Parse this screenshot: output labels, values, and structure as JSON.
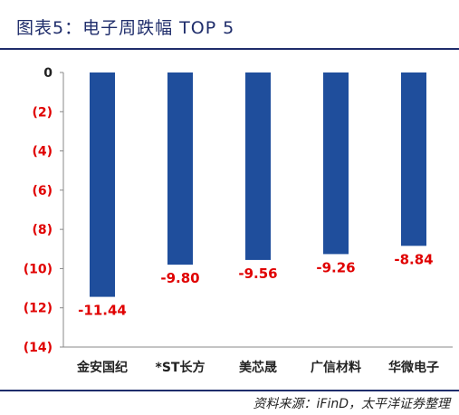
{
  "header": {
    "title": "图表5：电子周跌幅 TOP 5"
  },
  "footer": {
    "source": "资料来源：iFinD，太平洋证券整理"
  },
  "colors": {
    "bar": "#1f4e9c",
    "data_label": "#e00000",
    "rule": "#1f2d6b"
  },
  "chart_data": {
    "type": "bar",
    "title": "",
    "xlabel": "",
    "ylabel": "",
    "categories": [
      "金安国纪",
      "*ST长方",
      "美芯晟",
      "广信材料",
      "华微电子"
    ],
    "values": [
      -11.44,
      -9.8,
      -9.56,
      -9.26,
      -8.84
    ],
    "data_labels": [
      "-11.44",
      "-9.80",
      "-9.56",
      "-9.26",
      "-8.84"
    ],
    "yticks": [
      0,
      -2,
      -4,
      -6,
      -8,
      -10,
      -12,
      -14
    ],
    "ytick_labels": [
      "0",
      "(2)",
      "(4)",
      "(6)",
      "(8)",
      "(10)",
      "(12)",
      "(14)"
    ],
    "ylim": [
      -14,
      0
    ],
    "grid": false,
    "legend": "none"
  }
}
